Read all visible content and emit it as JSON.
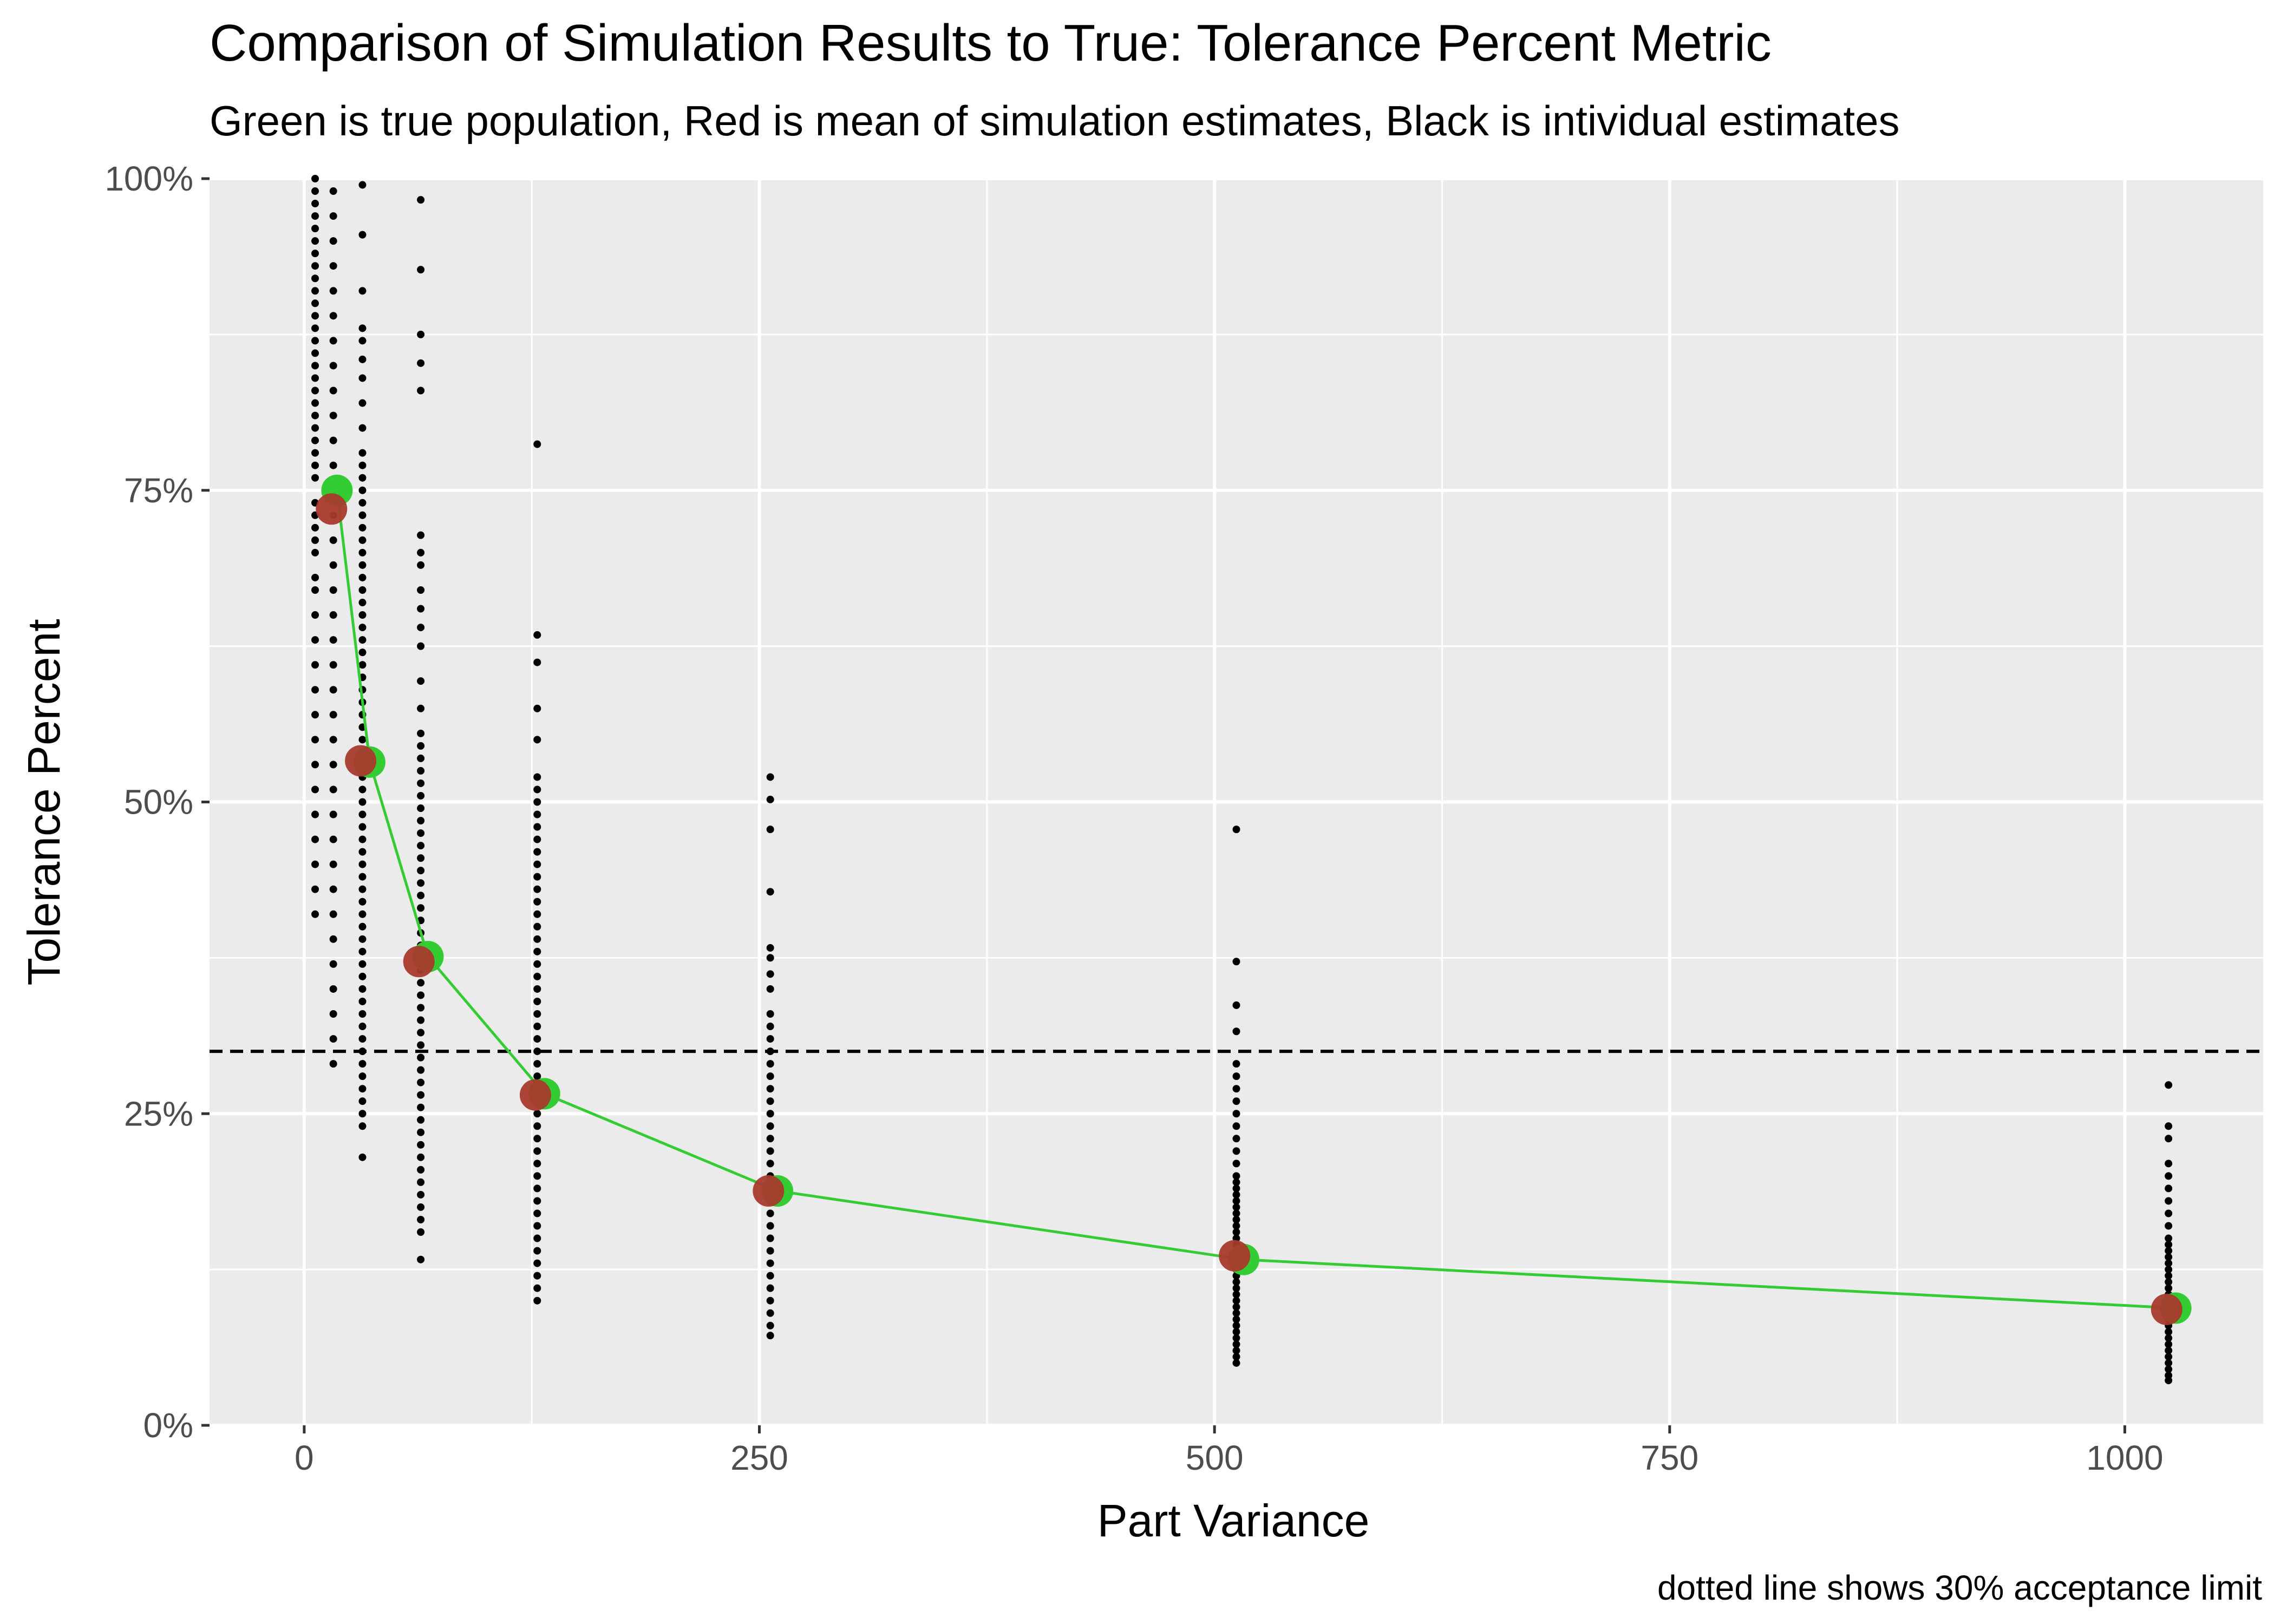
{
  "chart_data": {
    "type": "scatter",
    "title": "Comparison of Simulation Results to True: Tolerance Percent Metric",
    "subtitle": "Green is true population, Red is mean of simulation estimates, Black is intividual estimates",
    "xlabel": "Part Variance",
    "ylabel": "Tolerance Percent",
    "caption": "dotted line shows 30% acceptance limit",
    "xlim": [
      -52,
      1076
    ],
    "ylim": [
      0,
      1
    ],
    "x_ticks": [
      0,
      250,
      500,
      750,
      1000
    ],
    "x_tick_labels": [
      "0",
      "250",
      "500",
      "750",
      "1000"
    ],
    "y_ticks": [
      0,
      0.25,
      0.5,
      0.75,
      1
    ],
    "y_tick_labels": [
      "0%",
      "25%",
      "50%",
      "75%",
      "100%"
    ],
    "grid": true,
    "reference_line": {
      "y": 0.3,
      "style": "dashed",
      "color": "#000000"
    },
    "series": [
      {
        "name": "true population",
        "color": "#33cc33",
        "style": "line+points",
        "x": [
          18,
          36,
          68,
          132,
          260,
          516,
          1028
        ],
        "y": [
          0.75,
          0.532,
          0.376,
          0.266,
          0.188,
          0.133,
          0.094
        ]
      },
      {
        "name": "mean of simulation estimates",
        "color": "#a83a2c",
        "style": "points",
        "x": [
          15,
          31,
          63,
          127,
          255,
          511,
          1023
        ],
        "y": [
          0.735,
          0.533,
          0.372,
          0.265,
          0.188,
          0.136,
          0.093
        ]
      },
      {
        "name": "individual estimates",
        "color": "#000000",
        "style": "points",
        "groups": [
          {
            "x": 6,
            "values": [
              0.41,
              0.43,
              0.45,
              0.47,
              0.49,
              0.51,
              0.53,
              0.55,
              0.57,
              0.59,
              0.61,
              0.63,
              0.65,
              0.67,
              0.68,
              0.7,
              0.71,
              0.72,
              0.73,
              0.74,
              0.76,
              0.77,
              0.78,
              0.79,
              0.8,
              0.81,
              0.82,
              0.83,
              0.84,
              0.85,
              0.86,
              0.87,
              0.88,
              0.89,
              0.9,
              0.91,
              0.92,
              0.93,
              0.94,
              0.95,
              0.96,
              0.97,
              0.98,
              0.99,
              1.0
            ]
          },
          {
            "x": 16,
            "values": [
              0.29,
              0.31,
              0.33,
              0.35,
              0.37,
              0.39,
              0.41,
              0.43,
              0.45,
              0.47,
              0.49,
              0.51,
              0.53,
              0.55,
              0.57,
              0.59,
              0.61,
              0.63,
              0.65,
              0.67,
              0.69,
              0.71,
              0.73,
              0.75,
              0.77,
              0.79,
              0.81,
              0.83,
              0.85,
              0.87,
              0.89,
              0.91,
              0.93,
              0.95,
              0.97,
              0.99
            ]
          },
          {
            "x": 32,
            "values": [
              0.215,
              0.24,
              0.25,
              0.26,
              0.27,
              0.28,
              0.29,
              0.3,
              0.31,
              0.32,
              0.33,
              0.34,
              0.35,
              0.36,
              0.37,
              0.38,
              0.39,
              0.4,
              0.41,
              0.42,
              0.43,
              0.44,
              0.45,
              0.46,
              0.47,
              0.48,
              0.49,
              0.5,
              0.51,
              0.52,
              0.53,
              0.54,
              0.55,
              0.56,
              0.57,
              0.58,
              0.59,
              0.6,
              0.61,
              0.62,
              0.63,
              0.64,
              0.65,
              0.66,
              0.67,
              0.68,
              0.69,
              0.7,
              0.71,
              0.72,
              0.73,
              0.74,
              0.75,
              0.76,
              0.77,
              0.78,
              0.8,
              0.82,
              0.84,
              0.855,
              0.87,
              0.88,
              0.91,
              0.955,
              0.995
            ]
          },
          {
            "x": 64,
            "values": [
              0.133,
              0.155,
              0.165,
              0.175,
              0.185,
              0.195,
              0.205,
              0.215,
              0.225,
              0.235,
              0.245,
              0.255,
              0.265,
              0.275,
              0.285,
              0.295,
              0.305,
              0.315,
              0.325,
              0.335,
              0.345,
              0.355,
              0.365,
              0.375,
              0.385,
              0.395,
              0.405,
              0.415,
              0.425,
              0.435,
              0.445,
              0.455,
              0.465,
              0.475,
              0.485,
              0.495,
              0.505,
              0.515,
              0.525,
              0.535,
              0.545,
              0.555,
              0.575,
              0.597,
              0.625,
              0.64,
              0.655,
              0.67,
              0.69,
              0.7,
              0.714,
              0.83,
              0.852,
              0.875,
              0.927,
              0.983
            ]
          },
          {
            "x": 128,
            "values": [
              0.1,
              0.11,
              0.12,
              0.13,
              0.14,
              0.15,
              0.16,
              0.17,
              0.18,
              0.19,
              0.2,
              0.21,
              0.22,
              0.23,
              0.24,
              0.25,
              0.26,
              0.27,
              0.28,
              0.29,
              0.3,
              0.31,
              0.32,
              0.33,
              0.34,
              0.35,
              0.36,
              0.37,
              0.38,
              0.39,
              0.4,
              0.41,
              0.42,
              0.43,
              0.44,
              0.45,
              0.46,
              0.47,
              0.48,
              0.49,
              0.5,
              0.51,
              0.52,
              0.55,
              0.575,
              0.612,
              0.634,
              0.787
            ]
          },
          {
            "x": 256,
            "values": [
              0.072,
              0.08,
              0.09,
              0.1,
              0.11,
              0.12,
              0.13,
              0.14,
              0.15,
              0.16,
              0.17,
              0.18,
              0.19,
              0.2,
              0.21,
              0.22,
              0.23,
              0.24,
              0.25,
              0.26,
              0.27,
              0.28,
              0.29,
              0.3,
              0.31,
              0.32,
              0.33,
              0.35,
              0.362,
              0.375,
              0.383,
              0.428,
              0.478,
              0.502,
              0.52
            ]
          },
          {
            "x": 512,
            "values": [
              0.05,
              0.055,
              0.06,
              0.065,
              0.07,
              0.075,
              0.08,
              0.085,
              0.09,
              0.095,
              0.1,
              0.105,
              0.11,
              0.115,
              0.12,
              0.125,
              0.13,
              0.135,
              0.14,
              0.145,
              0.15,
              0.155,
              0.16,
              0.165,
              0.17,
              0.175,
              0.18,
              0.185,
              0.19,
              0.195,
              0.2,
              0.21,
              0.22,
              0.23,
              0.24,
              0.25,
              0.26,
              0.27,
              0.28,
              0.29,
              0.316,
              0.337,
              0.372,
              0.478
            ]
          },
          {
            "x": 1024,
            "values": [
              0.036,
              0.04,
              0.045,
              0.05,
              0.055,
              0.06,
              0.065,
              0.07,
              0.075,
              0.08,
              0.085,
              0.09,
              0.095,
              0.1,
              0.105,
              0.11,
              0.115,
              0.12,
              0.125,
              0.13,
              0.135,
              0.14,
              0.145,
              0.15,
              0.16,
              0.17,
              0.18,
              0.19,
              0.2,
              0.21,
              0.23,
              0.24,
              0.273
            ]
          }
        ]
      }
    ]
  }
}
